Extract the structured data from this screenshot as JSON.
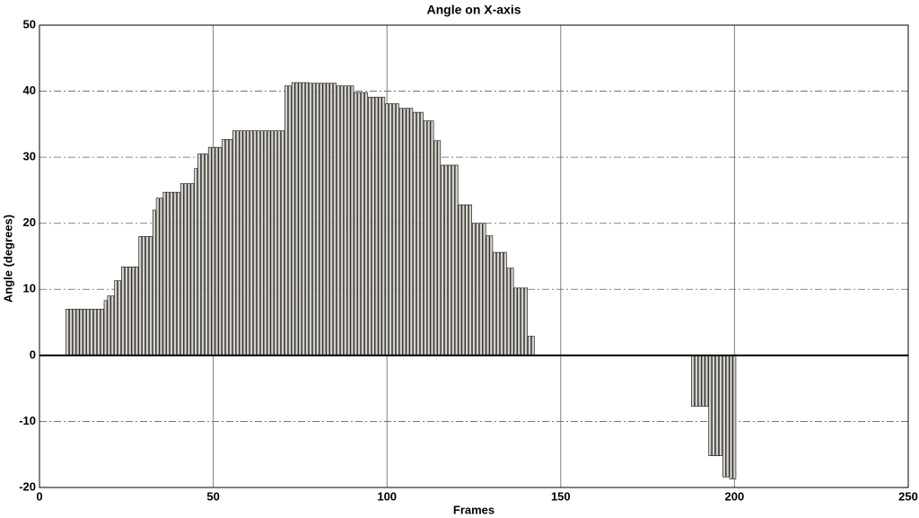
{
  "chart_data": {
    "type": "bar",
    "title": "Angle on X-axis",
    "xlabel": "Frames",
    "ylabel": "Angle (degrees)",
    "x": [
      8,
      9,
      10,
      11,
      12,
      13,
      14,
      15,
      16,
      17,
      18,
      19,
      20,
      21,
      22,
      23,
      24,
      25,
      26,
      27,
      28,
      29,
      30,
      31,
      32,
      33,
      34,
      35,
      36,
      37,
      38,
      39,
      40,
      41,
      42,
      43,
      44,
      45,
      46,
      47,
      48,
      49,
      50,
      51,
      52,
      53,
      54,
      55,
      56,
      57,
      58,
      59,
      60,
      61,
      62,
      63,
      64,
      65,
      66,
      67,
      68,
      69,
      70,
      71,
      72,
      73,
      74,
      75,
      76,
      77,
      78,
      79,
      80,
      81,
      82,
      83,
      84,
      85,
      86,
      87,
      88,
      89,
      90,
      91,
      92,
      93,
      94,
      95,
      96,
      97,
      98,
      99,
      100,
      101,
      102,
      103,
      104,
      105,
      106,
      107,
      108,
      109,
      110,
      111,
      112,
      113,
      114,
      115,
      116,
      117,
      118,
      119,
      120,
      121,
      122,
      123,
      124,
      125,
      126,
      127,
      128,
      129,
      130,
      131,
      132,
      133,
      134,
      135,
      136,
      137,
      138,
      139,
      140,
      141,
      142,
      188,
      189,
      190,
      191,
      192,
      193,
      194,
      195,
      196,
      197,
      198,
      199,
      200
    ],
    "values": [
      7,
      7,
      7,
      7,
      7,
      7,
      7,
      7,
      7,
      7,
      7,
      8.3,
      9,
      9,
      11.3,
      11.3,
      13.4,
      13.4,
      13.4,
      13.4,
      13.4,
      18,
      18,
      18,
      18,
      22,
      23.8,
      23.8,
      24.7,
      24.7,
      24.7,
      24.7,
      24.7,
      26,
      26,
      26,
      26,
      28.3,
      30.5,
      30.5,
      30.5,
      31.5,
      31.5,
      31.5,
      31.5,
      32.7,
      32.7,
      32.7,
      34,
      34,
      34,
      34,
      34,
      34,
      34,
      34,
      34,
      34,
      34,
      34,
      34,
      34,
      34,
      40.8,
      40.8,
      41.3,
      41.3,
      41.3,
      41.3,
      41.3,
      41.2,
      41.2,
      41.2,
      41.2,
      41.2,
      41.2,
      41.2,
      41.2,
      40.8,
      40.8,
      40.8,
      40.8,
      40.8,
      39.8,
      39.8,
      39.8,
      39.8,
      39.1,
      39.1,
      39.1,
      39.1,
      39.1,
      38.1,
      38.1,
      38.1,
      38.1,
      37.4,
      37.4,
      37.4,
      37.4,
      36.8,
      36.8,
      36.8,
      35.5,
      35.5,
      35.5,
      32.5,
      32.5,
      28.8,
      28.8,
      28.8,
      28.8,
      28.8,
      22.8,
      22.8,
      22.8,
      22.8,
      20,
      20,
      20,
      20,
      18.1,
      18.1,
      15.6,
      15.6,
      15.6,
      15.6,
      13.2,
      13.2,
      10.2,
      10.2,
      10.2,
      10.2,
      2.9,
      2.9,
      -7.7,
      -7.7,
      -7.7,
      -7.7,
      -7.7,
      -15.2,
      -15.2,
      -15.2,
      -15.2,
      -18.4,
      -18.4,
      -18.7,
      -18.7
    ],
    "color": "#d6d3cb",
    "xlim": [
      0,
      250
    ],
    "xticks": [
      0,
      50,
      100,
      150,
      200,
      250
    ],
    "ylim": [
      -20,
      50
    ],
    "yticks": [
      -20,
      -10,
      0,
      10,
      20,
      30,
      40,
      50
    ],
    "grid": true
  }
}
